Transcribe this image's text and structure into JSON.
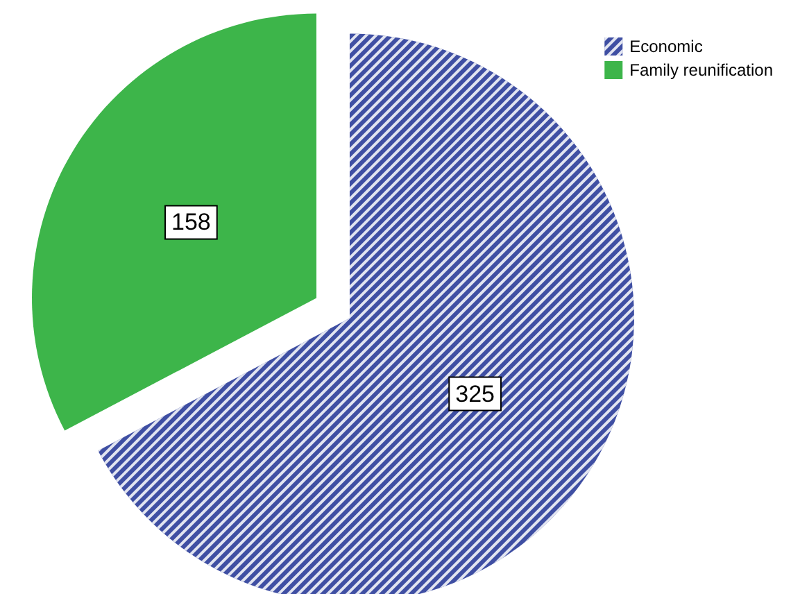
{
  "chart_data": {
    "type": "pie",
    "categories": [
      "Economic",
      "Family reunification"
    ],
    "values": [
      325,
      158
    ],
    "colors": [
      "#3f4fa3",
      "#3db54a"
    ],
    "data_labels": true,
    "legend": "top right"
  }
}
